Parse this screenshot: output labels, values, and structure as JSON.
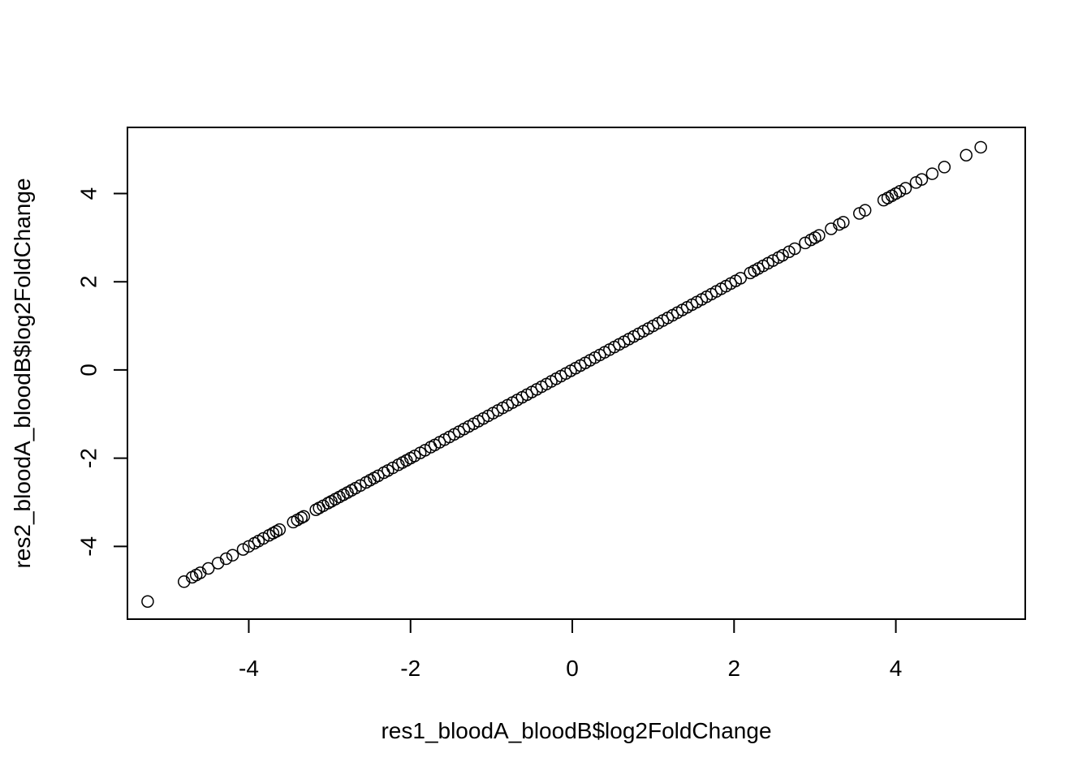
{
  "chart_data": {
    "type": "scatter",
    "title": "",
    "xlabel": "res1_bloodA_bloodB$log2FoldChange",
    "ylabel": "res2_bloodA_bloodB$log2FoldChange",
    "xlim": [
      -5.5,
      5.6
    ],
    "ylim": [
      -5.65,
      5.5
    ],
    "x_ticks": [
      -4,
      -2,
      0,
      2,
      4
    ],
    "x_tick_labels": [
      "-4",
      "-2",
      "0",
      "2",
      "4"
    ],
    "y_ticks": [
      -4,
      -2,
      0,
      2,
      4
    ],
    "y_tick_labels": [
      "-4",
      "-2",
      "0",
      "2",
      "4"
    ],
    "grid": false,
    "marker": "open-circle",
    "series": [
      {
        "name": "log2FoldChange",
        "x": [
          -5.25,
          -4.8,
          -4.7,
          -4.65,
          -4.6,
          -4.5,
          -4.38,
          -4.28,
          -4.2,
          -4.07,
          -4.0,
          -3.93,
          -3.88,
          -3.82,
          -3.75,
          -3.7,
          -3.66,
          -3.62,
          -3.45,
          -3.4,
          -3.35,
          -3.32,
          -3.17,
          -3.13,
          -3.08,
          -3.02,
          -2.98,
          -2.93,
          -2.88,
          -2.83,
          -2.78,
          -2.73,
          -2.68,
          -2.62,
          -2.55,
          -2.5,
          -2.45,
          -2.4,
          -2.33,
          -2.28,
          -2.22,
          -2.15,
          -2.1,
          -2.05,
          -2.0,
          -1.95,
          -1.88,
          -1.82,
          -1.75,
          -1.7,
          -1.64,
          -1.58,
          -1.52,
          -1.46,
          -1.4,
          -1.34,
          -1.28,
          -1.22,
          -1.16,
          -1.1,
          -1.04,
          -0.98,
          -0.92,
          -0.86,
          -0.8,
          -0.74,
          -0.68,
          -0.62,
          -0.56,
          -0.5,
          -0.44,
          -0.38,
          -0.32,
          -0.26,
          -0.2,
          -0.14,
          -0.08,
          -0.02,
          0.04,
          0.1,
          0.16,
          0.22,
          0.28,
          0.34,
          0.4,
          0.46,
          0.52,
          0.58,
          0.64,
          0.7,
          0.76,
          0.82,
          0.88,
          0.94,
          1.0,
          1.06,
          1.12,
          1.18,
          1.24,
          1.3,
          1.36,
          1.42,
          1.48,
          1.54,
          1.6,
          1.66,
          1.72,
          1.78,
          1.84,
          1.9,
          1.96,
          2.02,
          2.08,
          2.2,
          2.25,
          2.3,
          2.36,
          2.42,
          2.48,
          2.55,
          2.6,
          2.68,
          2.75,
          2.88,
          2.95,
          3.0,
          3.05,
          3.2,
          3.3,
          3.35,
          3.55,
          3.62,
          3.85,
          3.9,
          3.95,
          4.0,
          4.05,
          4.12,
          4.25,
          4.32,
          4.45,
          4.6,
          4.87,
          5.05
        ],
        "y": [
          -5.25,
          -4.8,
          -4.7,
          -4.65,
          -4.6,
          -4.5,
          -4.38,
          -4.28,
          -4.2,
          -4.07,
          -4.0,
          -3.93,
          -3.88,
          -3.82,
          -3.75,
          -3.7,
          -3.66,
          -3.62,
          -3.45,
          -3.4,
          -3.35,
          -3.32,
          -3.17,
          -3.13,
          -3.08,
          -3.02,
          -2.98,
          -2.93,
          -2.88,
          -2.83,
          -2.78,
          -2.73,
          -2.68,
          -2.62,
          -2.55,
          -2.5,
          -2.45,
          -2.4,
          -2.33,
          -2.28,
          -2.22,
          -2.15,
          -2.1,
          -2.05,
          -2.0,
          -1.95,
          -1.88,
          -1.82,
          -1.75,
          -1.7,
          -1.64,
          -1.58,
          -1.52,
          -1.46,
          -1.4,
          -1.34,
          -1.28,
          -1.22,
          -1.16,
          -1.1,
          -1.04,
          -0.98,
          -0.92,
          -0.86,
          -0.8,
          -0.74,
          -0.68,
          -0.62,
          -0.56,
          -0.5,
          -0.44,
          -0.38,
          -0.32,
          -0.26,
          -0.2,
          -0.14,
          -0.08,
          -0.02,
          0.04,
          0.1,
          0.16,
          0.22,
          0.28,
          0.34,
          0.4,
          0.46,
          0.52,
          0.58,
          0.64,
          0.7,
          0.76,
          0.82,
          0.88,
          0.94,
          1.0,
          1.06,
          1.12,
          1.18,
          1.24,
          1.3,
          1.36,
          1.42,
          1.48,
          1.54,
          1.6,
          1.66,
          1.72,
          1.78,
          1.84,
          1.9,
          1.96,
          2.02,
          2.08,
          2.2,
          2.25,
          2.3,
          2.36,
          2.42,
          2.48,
          2.55,
          2.6,
          2.68,
          2.75,
          2.88,
          2.95,
          3.0,
          3.05,
          3.2,
          3.3,
          3.35,
          3.55,
          3.62,
          3.85,
          3.9,
          3.95,
          4.0,
          4.05,
          4.12,
          4.25,
          4.32,
          4.45,
          4.6,
          4.87,
          5.05
        ]
      }
    ]
  },
  "colors": {
    "background": "#ffffff",
    "foreground": "#000000"
  }
}
